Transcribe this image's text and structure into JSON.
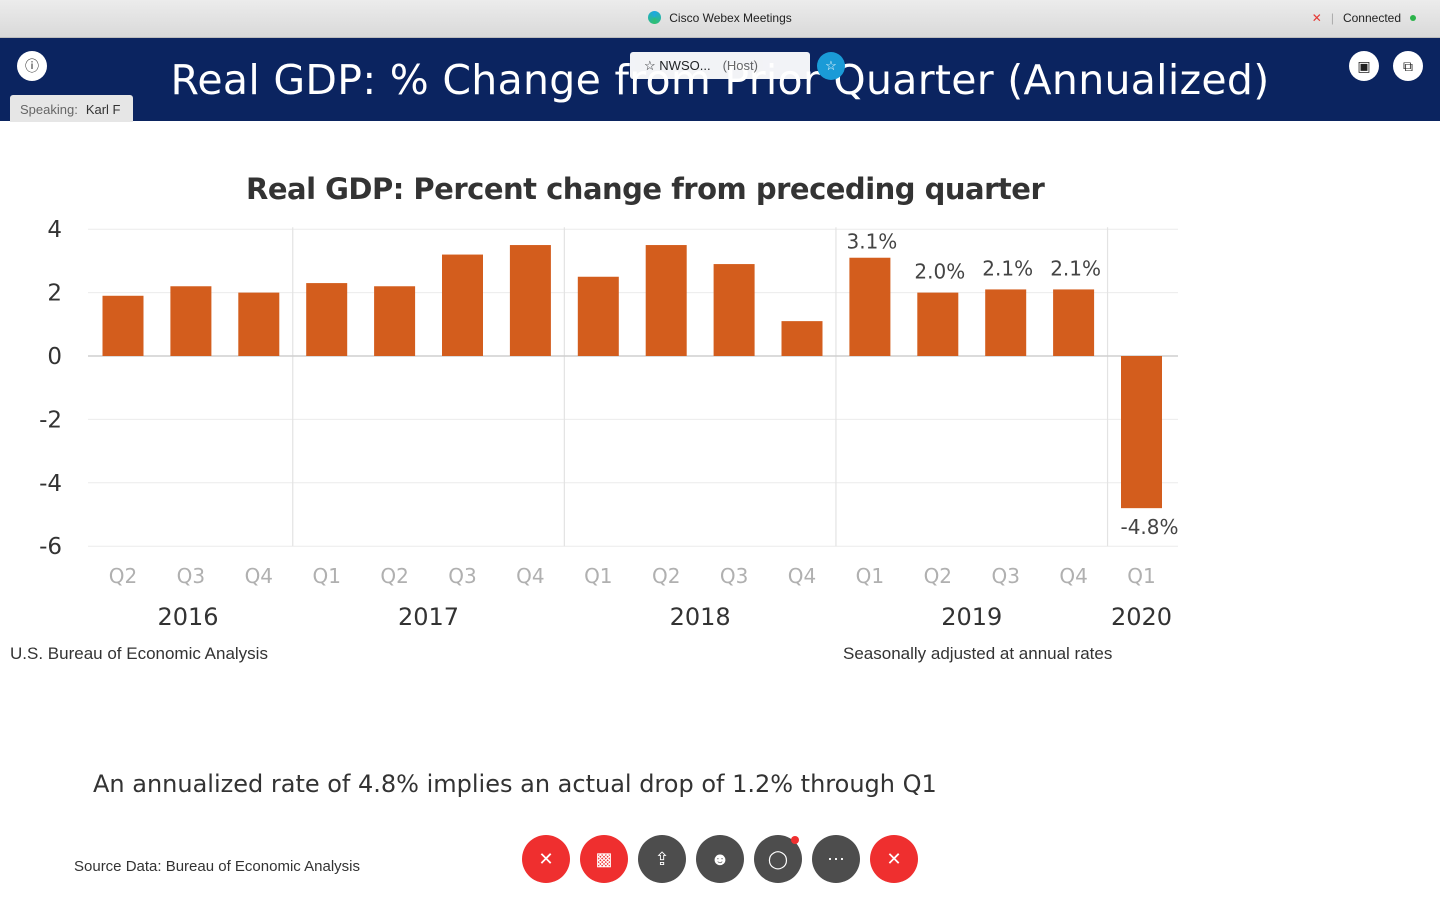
{
  "window": {
    "app_title": "Cisco Webex Meetings",
    "connection_status": "Connected"
  },
  "banner": {
    "slide_title": "Real GDP:  % Change from Prior Quarter (Annualized)",
    "speaking_label": "Speaking:",
    "speaker_name": "Karl F",
    "host_name": "NWSO...",
    "host_tag": "(Host)"
  },
  "icons": {
    "info": "info-icon",
    "mic_muted": "mic-muted-icon",
    "pin": "pin-icon",
    "pip": "picture-in-picture-icon",
    "layout": "layout-icon"
  },
  "chart_data": {
    "type": "bar",
    "title": "Real GDP:  Percent change from preceding quarter",
    "categories": [
      "Q2",
      "Q3",
      "Q4",
      "Q1",
      "Q2",
      "Q3",
      "Q4",
      "Q1",
      "Q2",
      "Q3",
      "Q4",
      "Q1",
      "Q2",
      "Q3",
      "Q4",
      "Q1"
    ],
    "values": [
      1.9,
      2.2,
      2.0,
      2.3,
      2.2,
      3.2,
      3.5,
      2.5,
      3.5,
      2.9,
      1.1,
      3.1,
      2.0,
      2.1,
      2.1,
      -4.8
    ],
    "data_labels": [
      "",
      "",
      "",
      "",
      "",
      "",
      "",
      "",
      "",
      "",
      "",
      "3.1%",
      "2.0%",
      "2.1%",
      "2.1%",
      "-4.8%"
    ],
    "years": [
      {
        "label": "2016",
        "start": 0,
        "end": 2
      },
      {
        "label": "2017",
        "start": 3,
        "end": 6
      },
      {
        "label": "2018",
        "start": 7,
        "end": 10
      },
      {
        "label": "2019",
        "start": 11,
        "end": 14
      },
      {
        "label": "2020",
        "start": 15,
        "end": 15
      }
    ],
    "yticks": [
      "4",
      "2",
      "0",
      "-2",
      "-4",
      "-6"
    ],
    "ylim": [
      -6,
      4
    ],
    "bar_color": "#d35d1d",
    "grid": true
  },
  "notes": {
    "left": "U.S. Bureau of Economic Analysis",
    "right": "Seasonally adjusted at annual rates"
  },
  "caption": "An annualized rate of 4.8% implies an actual drop of 1.2% through Q1",
  "source": "Source Data: Bureau of Economic Analysis",
  "controls": {
    "mute": "mic-muted-icon",
    "video": "video-off-icon",
    "share": "share-icon",
    "participants": "participants-icon",
    "chat": "chat-icon",
    "more": "more-icon",
    "leave": "leave-icon"
  }
}
